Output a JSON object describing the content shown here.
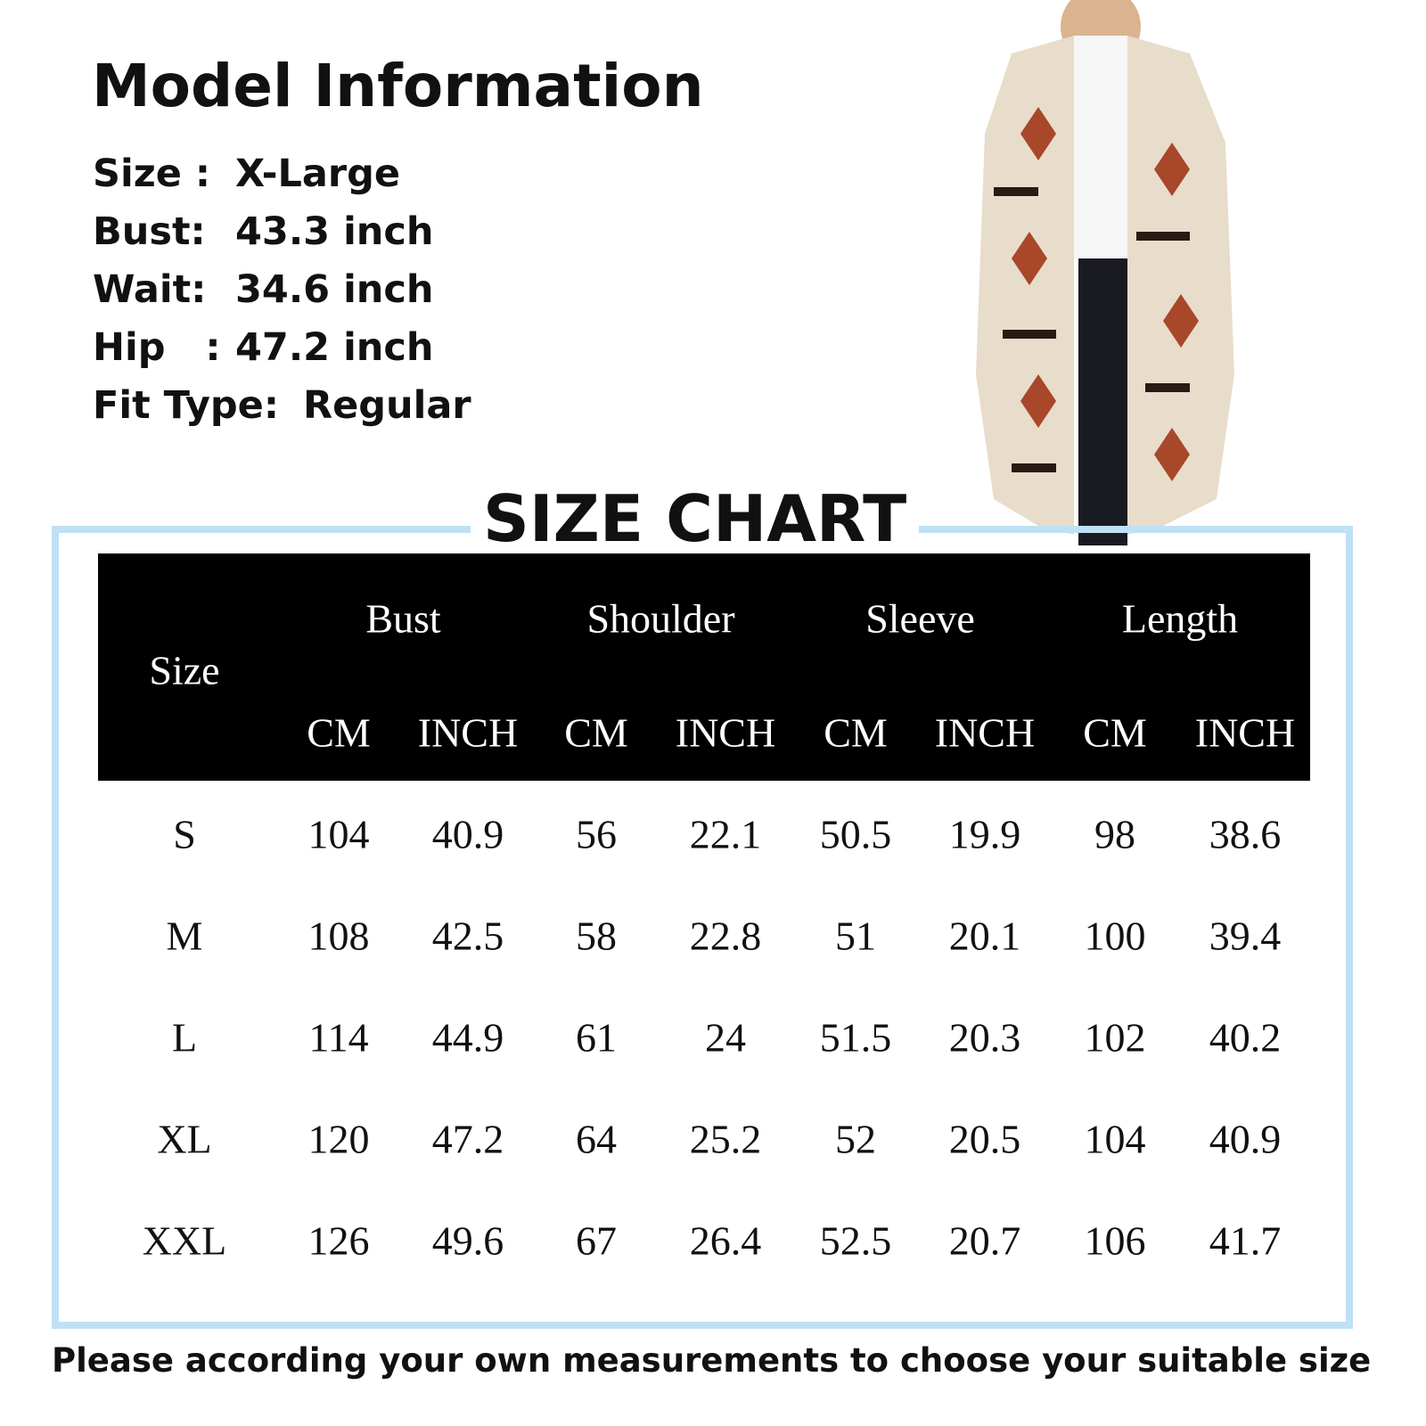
{
  "model_info": {
    "title": "Model Information",
    "lines": [
      {
        "label": "Size :",
        "value": "X-Large"
      },
      {
        "label": "Bust:",
        "value": "43.3 inch"
      },
      {
        "label": "Wait:",
        "value": "34.6 inch"
      },
      {
        "label": "Hip   :",
        "value": "47.2 inch"
      },
      {
        "label": "Fit Type:",
        "value": "Regular"
      }
    ]
  },
  "size_chart": {
    "title": "SIZE CHART",
    "size_header": "Size",
    "groups": [
      "Bust",
      "Shoulder",
      "Sleeve",
      "Length"
    ],
    "units": [
      "CM",
      "INCH",
      "CM",
      "INCH",
      "CM",
      "INCH",
      "CM",
      "INCH"
    ],
    "rows": [
      [
        "S",
        "104",
        "40.9",
        "56",
        "22.1",
        "50.5",
        "19.9",
        "98",
        "38.6"
      ],
      [
        "M",
        "108",
        "42.5",
        "58",
        "22.8",
        "51",
        "20.1",
        "100",
        "39.4"
      ],
      [
        "L",
        "114",
        "44.9",
        "61",
        "24",
        "51.5",
        "20.3",
        "102",
        "40.2"
      ],
      [
        "XL",
        "120",
        "47.2",
        "64",
        "25.2",
        "52",
        "20.5",
        "104",
        "40.9"
      ],
      [
        "XXL",
        "126",
        "49.6",
        "67",
        "26.4",
        "52.5",
        "20.7",
        "106",
        "41.7"
      ]
    ]
  },
  "footer": "Please according your own measurements to choose your suitable size",
  "colors": {
    "frame": "#bfe0f5",
    "header_bg": "#000000",
    "print_rust": "#a8472a",
    "coat_cream": "#e8dccb"
  }
}
